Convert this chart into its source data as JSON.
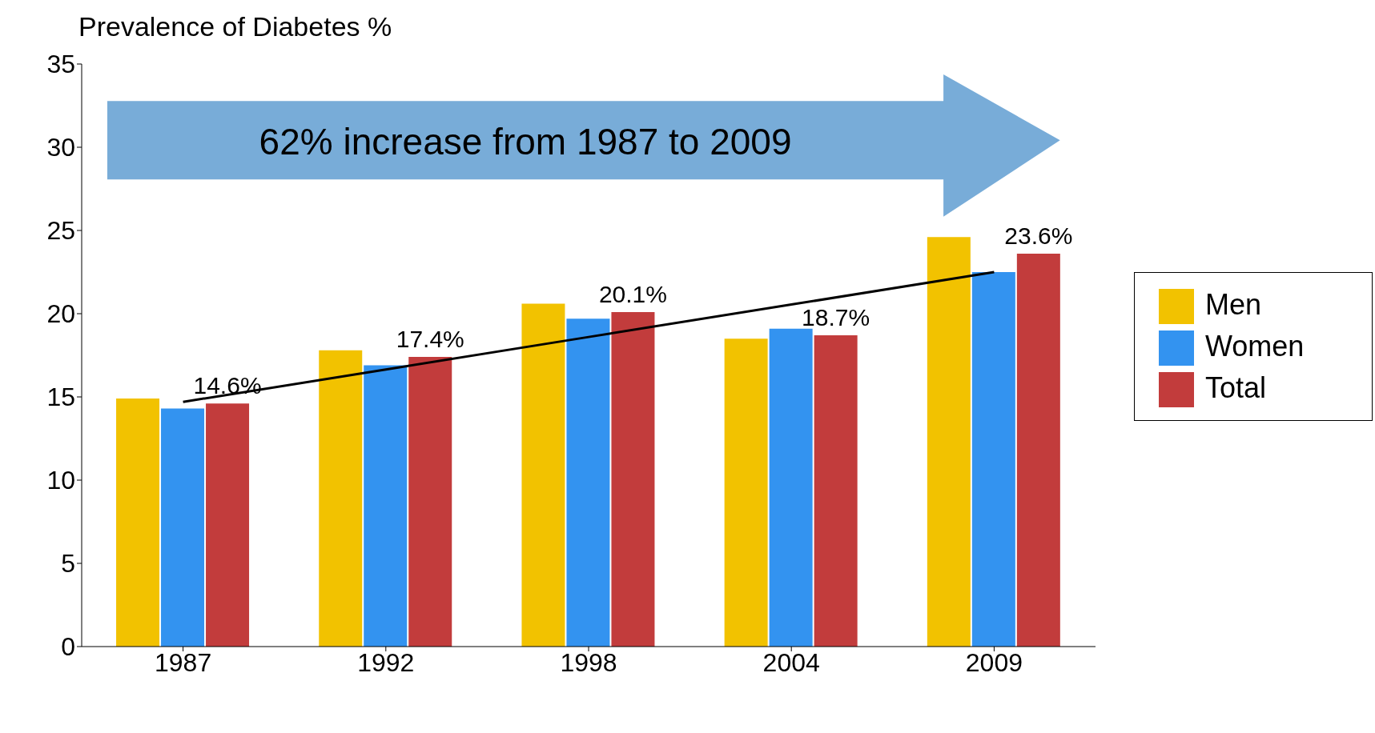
{
  "chart_data": {
    "type": "bar",
    "ylabel": "Prevalence of Diabetes %",
    "categories": [
      "1987",
      "1992",
      "1998",
      "2004",
      "2009"
    ],
    "series": [
      {
        "name": "Men",
        "color": "#f2c200",
        "values": [
          14.9,
          17.8,
          20.6,
          18.5,
          24.6
        ]
      },
      {
        "name": "Women",
        "color": "#3393f0",
        "values": [
          14.3,
          16.9,
          19.7,
          19.1,
          22.5
        ]
      },
      {
        "name": "Total",
        "color": "#c23c3c",
        "values": [
          14.6,
          17.4,
          20.1,
          18.7,
          23.6
        ],
        "value_labels": [
          "14.6%",
          "17.4%",
          "20.1%",
          "18.7%",
          "23.6%"
        ]
      },
      {
        "type": "line",
        "color": "#000000",
        "values": [
          14.7,
          16.65,
          18.6,
          20.55,
          22.5
        ]
      }
    ],
    "ylim": [
      0,
      35
    ],
    "yticks": [
      0,
      5,
      10,
      15,
      20,
      25,
      30,
      35
    ],
    "grid": false,
    "legend": "right",
    "annotations": [
      "62% increase from 1987 to 2009"
    ]
  }
}
